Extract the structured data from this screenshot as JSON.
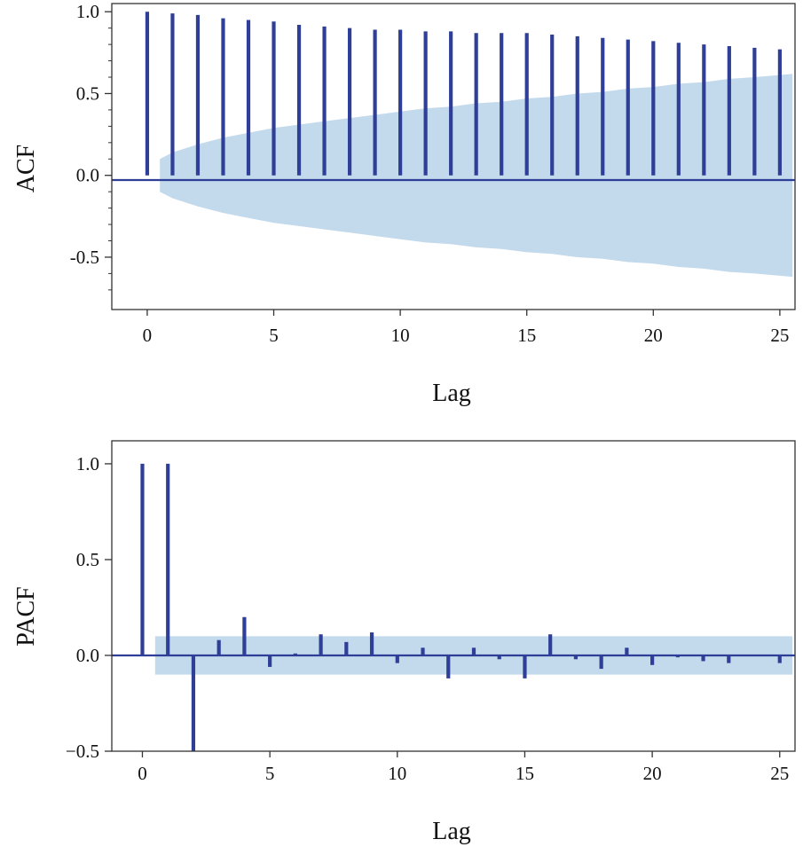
{
  "colors": {
    "stem": "#2f3f98",
    "band": "#c3d9ec",
    "baseline": "#2f3f98",
    "frame": "#333333"
  },
  "chart_data": [
    {
      "type": "bar",
      "subtype": "stem",
      "title": "",
      "xlabel": "Lag",
      "ylabel": "ACF",
      "xlim": [
        -1.4,
        25.6
      ],
      "ylim": [
        -0.82,
        1.05
      ],
      "xticks": [
        "0",
        "5",
        "10",
        "15",
        "20",
        "25"
      ],
      "yticks": [
        "1.0",
        "0.5",
        "0.0",
        "-0.5"
      ],
      "x": [
        0,
        1,
        2,
        3,
        4,
        5,
        6,
        7,
        8,
        9,
        10,
        11,
        12,
        13,
        14,
        15,
        16,
        17,
        18,
        19,
        20,
        21,
        22,
        23,
        24,
        25
      ],
      "values": [
        1.0,
        0.99,
        0.98,
        0.96,
        0.95,
        0.94,
        0.92,
        0.91,
        0.9,
        0.89,
        0.89,
        0.88,
        0.88,
        0.87,
        0.87,
        0.87,
        0.86,
        0.85,
        0.84,
        0.83,
        0.82,
        0.81,
        0.8,
        0.79,
        0.78,
        0.77
      ],
      "confidence_band": {
        "x": [
          0.5,
          1,
          2,
          3,
          4,
          5,
          6,
          7,
          8,
          9,
          10,
          11,
          12,
          13,
          14,
          15,
          16,
          17,
          18,
          19,
          20,
          21,
          22,
          23,
          24,
          25.5
        ],
        "upper": [
          0.1,
          0.14,
          0.19,
          0.23,
          0.26,
          0.29,
          0.31,
          0.33,
          0.35,
          0.37,
          0.39,
          0.41,
          0.42,
          0.44,
          0.45,
          0.47,
          0.48,
          0.5,
          0.51,
          0.53,
          0.54,
          0.56,
          0.57,
          0.59,
          0.6,
          0.62
        ]
      },
      "grid": false
    },
    {
      "type": "bar",
      "subtype": "stem",
      "title": "",
      "xlabel": "Lag",
      "ylabel": "PACF",
      "xlim": [
        -1.2,
        25.6
      ],
      "ylim": [
        -0.5,
        1.12
      ],
      "xticks": [
        "0",
        "5",
        "10",
        "15",
        "20",
        "25"
      ],
      "yticks": [
        "1.0",
        "0.5",
        "0.0",
        "−0.5"
      ],
      "x": [
        0,
        1,
        2,
        3,
        4,
        5,
        6,
        7,
        8,
        9,
        10,
        11,
        12,
        13,
        14,
        15,
        16,
        17,
        18,
        19,
        20,
        21,
        22,
        23,
        24,
        25
      ],
      "values": [
        1.0,
        1.0,
        -0.5,
        0.08,
        0.2,
        -0.06,
        0.01,
        0.11,
        0.07,
        0.12,
        -0.04,
        0.04,
        -0.12,
        0.04,
        -0.02,
        -0.12,
        0.11,
        -0.02,
        -0.07,
        0.04,
        -0.05,
        -0.01,
        -0.03,
        -0.04,
        0.0,
        -0.04
      ],
      "confidence_band": {
        "x": [
          0.5,
          25.5
        ],
        "upper": [
          0.1,
          0.1
        ]
      },
      "grid": false
    }
  ]
}
